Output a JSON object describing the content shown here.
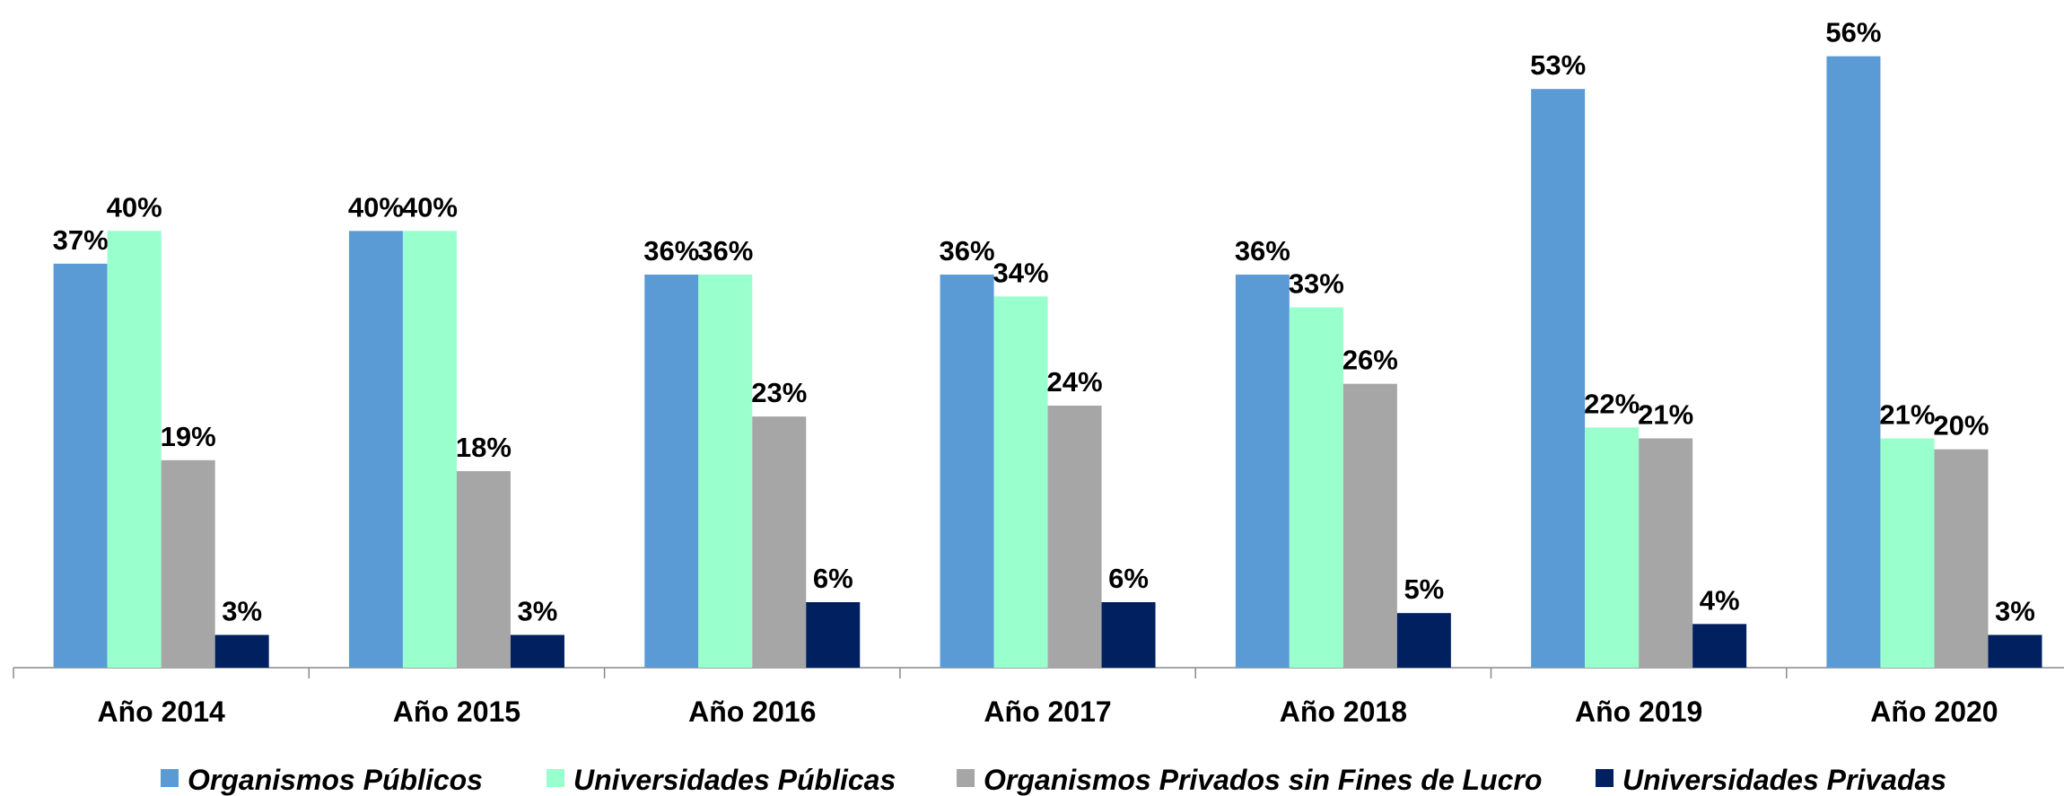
{
  "chart_data": {
    "type": "bar",
    "categories": [
      "Año 2014",
      "Año 2015",
      "Año 2016",
      "Año 2017",
      "Año 2018",
      "Año 2019",
      "Año 2020"
    ],
    "ylim": [
      0,
      60
    ],
    "series": [
      {
        "name": "Organismos Públicos",
        "color": "#5b9bd5",
        "values": [
          37,
          40,
          36,
          36,
          36,
          53,
          56
        ],
        "value_labels": [
          "37%",
          "40%",
          "36%",
          "36%",
          "36%",
          "53%",
          "56%"
        ]
      },
      {
        "name": "Universidades Públicas",
        "color": "#99ffcc",
        "values": [
          40,
          40,
          36,
          34,
          33,
          22,
          21
        ],
        "value_labels": [
          "40%",
          "40%",
          "36%",
          "34%",
          "33%",
          "22%",
          "21%"
        ]
      },
      {
        "name": "Organismos Privados sin Fines de Lucro",
        "color": "#a6a6a6",
        "values": [
          19,
          18,
          23,
          24,
          26,
          21,
          20
        ],
        "value_labels": [
          "19%",
          "18%",
          "23%",
          "24%",
          "26%",
          "21%",
          "20%"
        ]
      },
      {
        "name": "Universidades Privadas",
        "color": "#002060",
        "values": [
          3,
          3,
          6,
          6,
          5,
          4,
          3
        ],
        "value_labels": [
          "3%",
          "3%",
          "6%",
          "6%",
          "5%",
          "4%",
          "3%"
        ]
      }
    ]
  }
}
